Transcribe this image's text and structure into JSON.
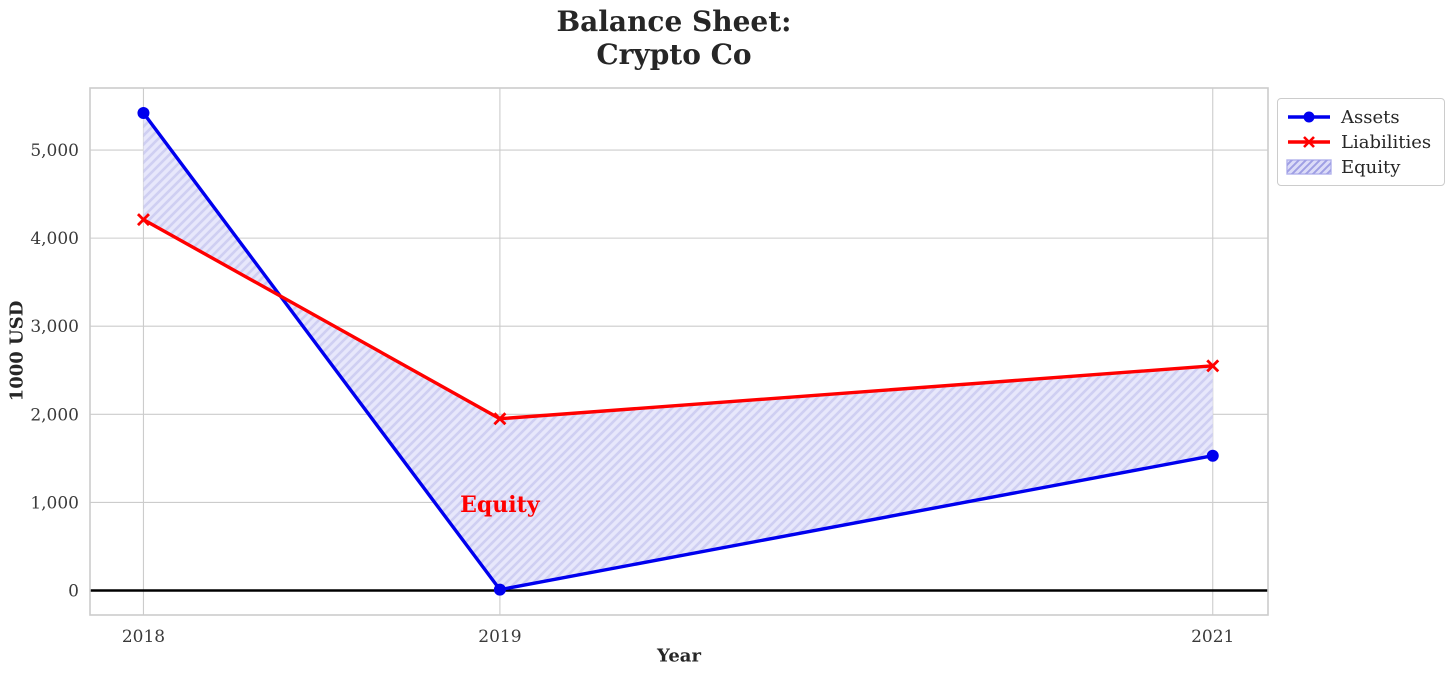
{
  "title": {
    "line1": "Balance Sheet:",
    "line2": "Crypto Co"
  },
  "chart_data": {
    "type": "line",
    "x": [
      2018,
      2019,
      2021
    ],
    "series": [
      {
        "name": "Assets",
        "values": [
          5420,
          10,
          1530
        ],
        "color": "#0000ee",
        "marker": "circle"
      },
      {
        "name": "Liabilities",
        "values": [
          4210,
          1950,
          2550
        ],
        "color": "#ff0000",
        "marker": "x"
      }
    ],
    "fill_between": {
      "label": "Equity",
      "face_color": "#e7e7fb",
      "hatch_color": "#cfcff2",
      "hatch": "//"
    },
    "annotation": {
      "text": "Equity",
      "x": 2019,
      "y": 980,
      "color": "#ff0000"
    },
    "xlabel": "Year",
    "ylabel": "1000 USD",
    "xticks": [
      {
        "v": 2018,
        "label": "2018"
      },
      {
        "v": 2019,
        "label": "2019"
      },
      {
        "v": 2021,
        "label": "2021"
      }
    ],
    "yticks": [
      {
        "v": 0,
        "label": "0"
      },
      {
        "v": 1000,
        "label": "1,000"
      },
      {
        "v": 2000,
        "label": "2,000"
      },
      {
        "v": 3000,
        "label": "3,000"
      },
      {
        "v": 4000,
        "label": "4,000"
      },
      {
        "v": 5000,
        "label": "5,000"
      }
    ],
    "xlim": [
      2017.85,
      2021.155
    ],
    "ylim": [
      -278,
      5704
    ],
    "grid": true,
    "legend_position": "outside-top-right",
    "zero_line": {
      "y": 0,
      "color": "#000000"
    },
    "legend": [
      {
        "label": "Assets",
        "type": "line-circle",
        "color": "#0000ee"
      },
      {
        "label": "Liabilities",
        "type": "line-x",
        "color": "#ff0000"
      },
      {
        "label": "Equity",
        "type": "patch",
        "face": "#dcdcf8",
        "hatch_color": "#9f9fe4",
        "edge": "#b2b2ec"
      }
    ],
    "colors": {
      "grid": "#cccccc",
      "spine": "#cccccc",
      "tick_text": "#3a3a3a"
    }
  }
}
